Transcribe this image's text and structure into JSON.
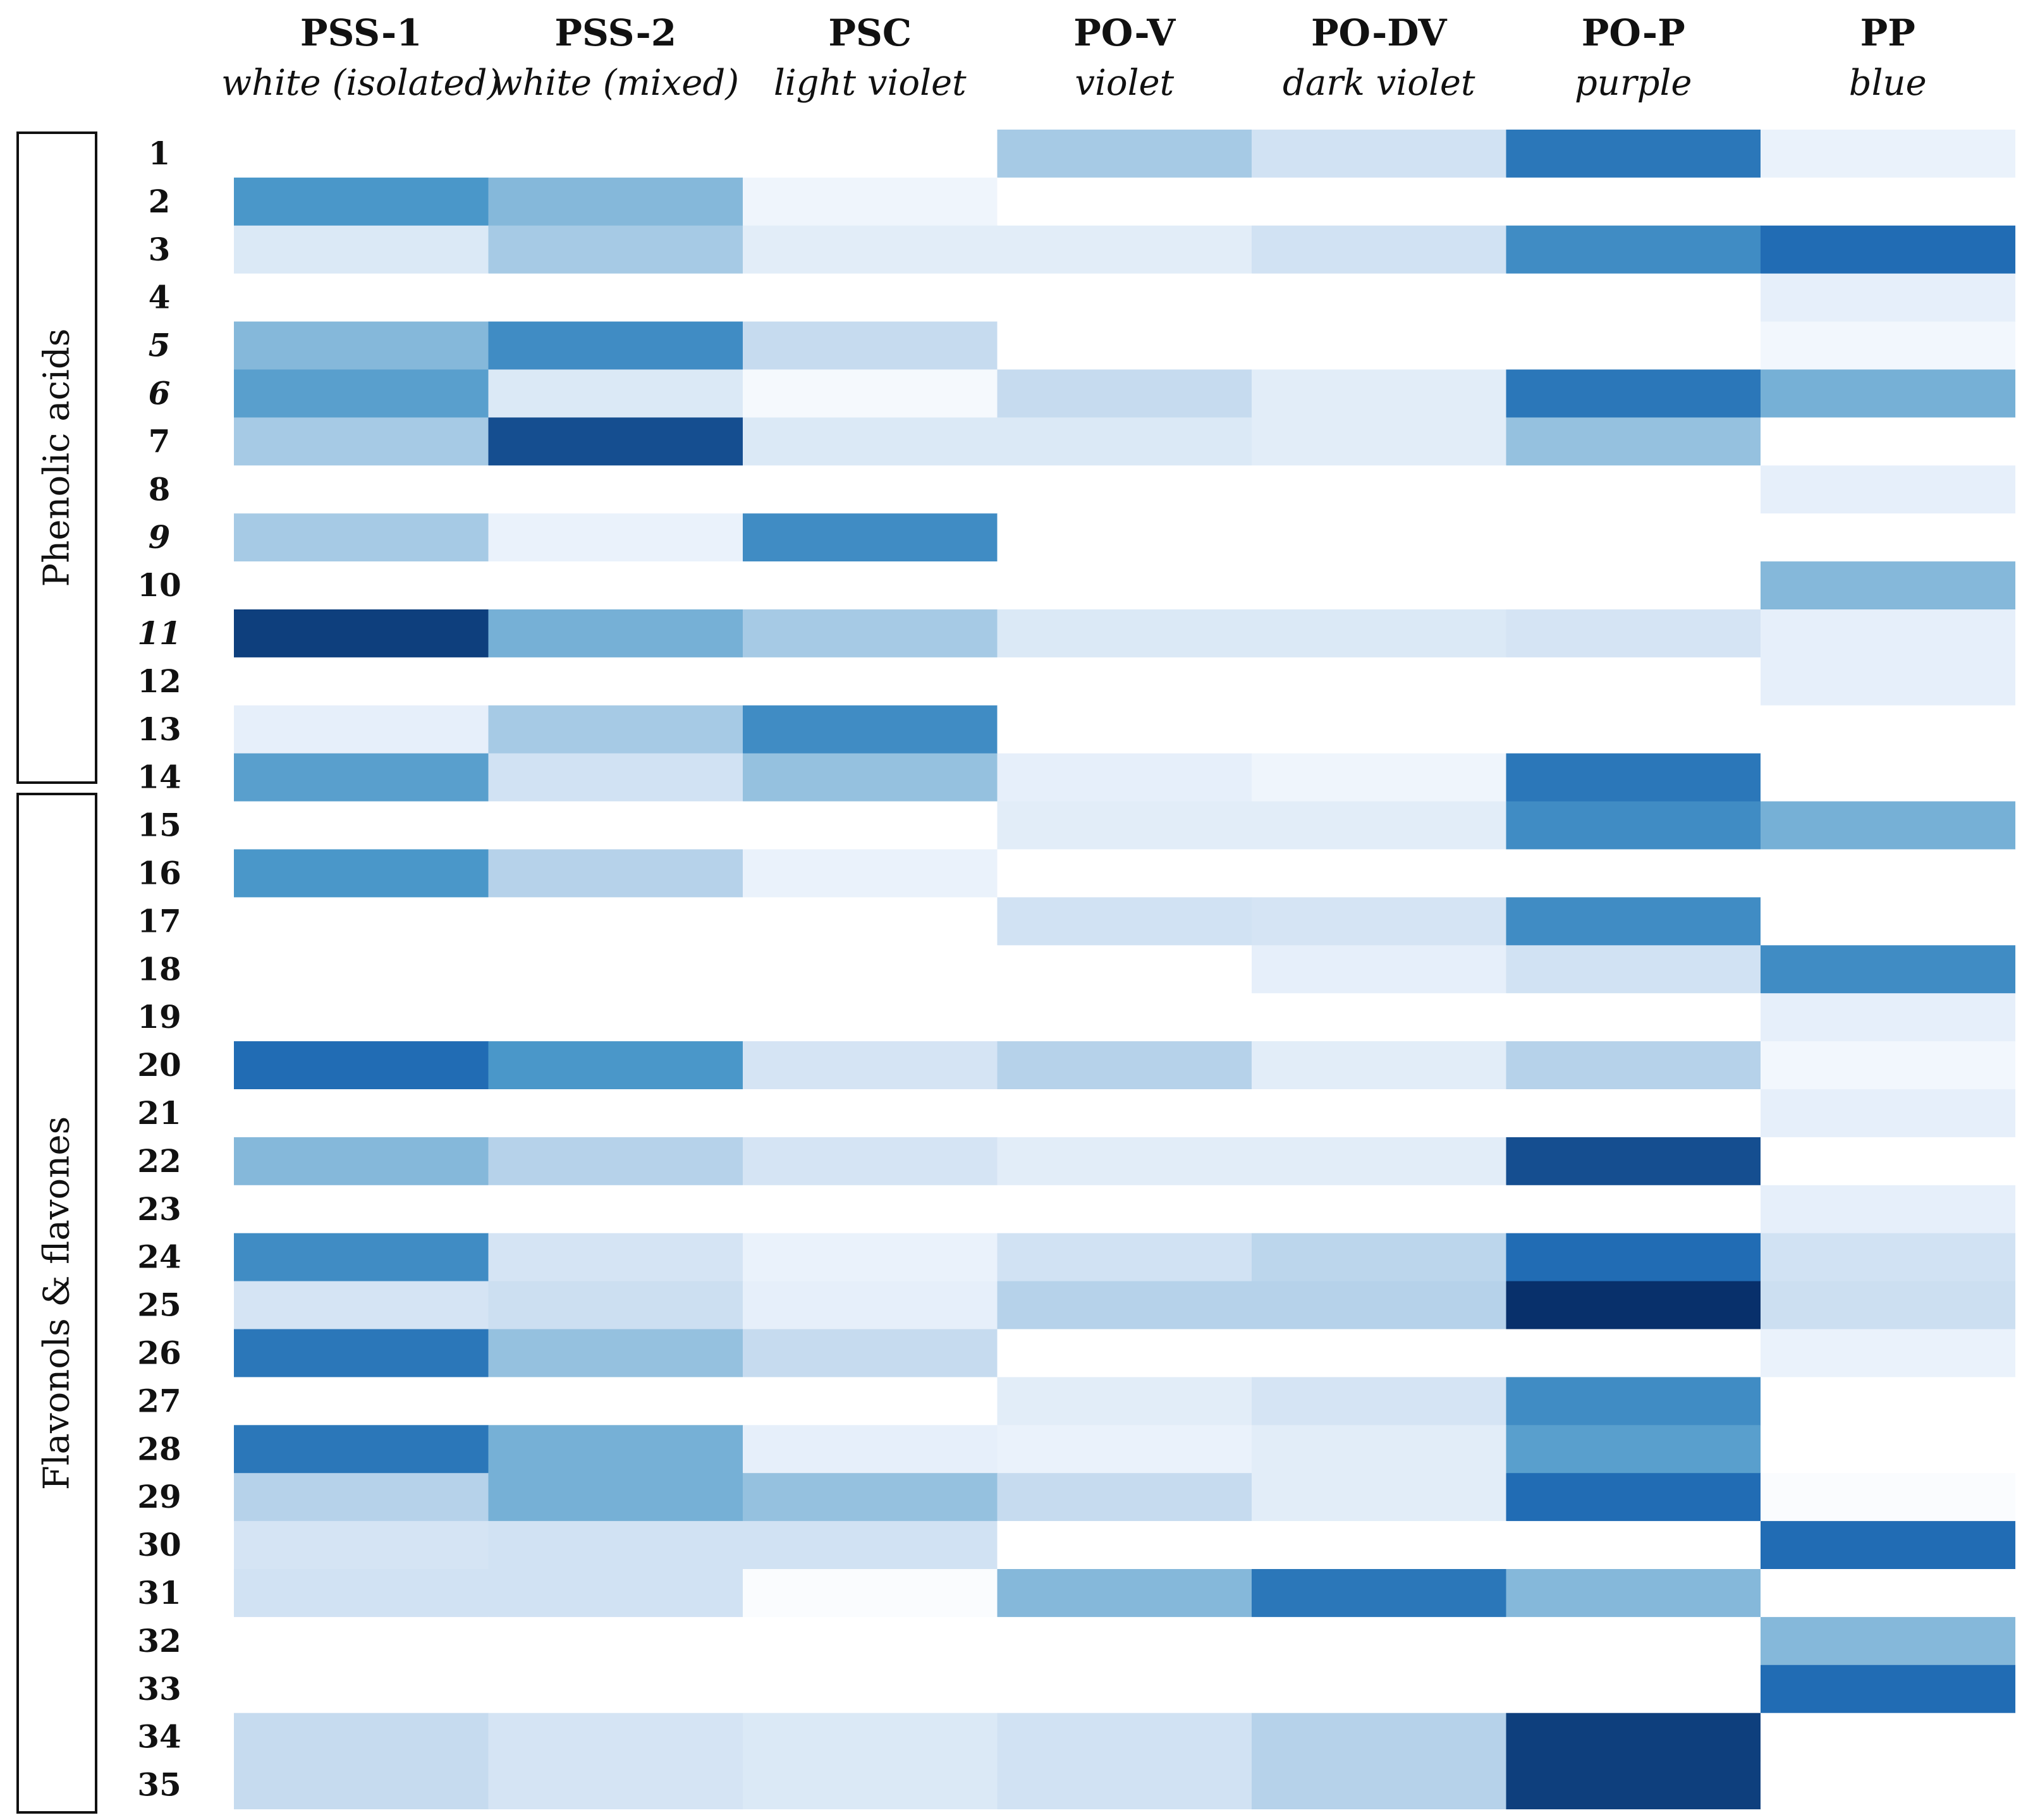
{
  "chart_data": {
    "type": "heatmap",
    "columns": [
      {
        "code": "PSS-1",
        "description": "white (isolated)"
      },
      {
        "code": "PSS-2",
        "description": "white (mixed)"
      },
      {
        "code": "PSC",
        "description": "light violet"
      },
      {
        "code": "PO-V",
        "description": "violet"
      },
      {
        "code": "PO-DV",
        "description": "dark violet"
      },
      {
        "code": "PO-P",
        "description": "purple"
      },
      {
        "code": "PP",
        "description": "blue"
      }
    ],
    "rows": [
      "1",
      "2",
      "3",
      "4",
      "5",
      "6",
      "7",
      "8",
      "9",
      "10",
      "11",
      "12",
      "13",
      "14",
      "15",
      "16",
      "17",
      "18",
      "19",
      "20",
      "21",
      "22",
      "23",
      "24",
      "25",
      "26",
      "27",
      "28",
      "29",
      "30",
      "31",
      "32",
      "33",
      "34",
      "35"
    ],
    "italic_rows": [
      "5",
      "6",
      "9",
      "11"
    ],
    "groups": [
      {
        "label": "Phenolic acids",
        "rows": [
          "1",
          "14"
        ]
      },
      {
        "label": "Flavonols & flavones",
        "rows": [
          "15",
          "35"
        ]
      }
    ],
    "values": [
      [
        0,
        0,
        0,
        0.35,
        0.2,
        0.8,
        0.08
      ],
      [
        0.65,
        0.45,
        0.06,
        0,
        0,
        0,
        0
      ],
      [
        0.15,
        0.35,
        0.12,
        0.12,
        0.2,
        0.7,
        0.85
      ],
      [
        0,
        0,
        0,
        0,
        0,
        0,
        0.1
      ],
      [
        0.45,
        0.7,
        0.25,
        0,
        0,
        0,
        0.05
      ],
      [
        0.6,
        0.15,
        0.04,
        0.25,
        0.12,
        0.8,
        0.5
      ],
      [
        0.35,
        0.95,
        0.15,
        0.15,
        0.12,
        0.4,
        0
      ],
      [
        0,
        0,
        0,
        0,
        0,
        0,
        0.1
      ],
      [
        0.35,
        0.08,
        0.7,
        0,
        0,
        0,
        0
      ],
      [
        0,
        0,
        0,
        0,
        0,
        0,
        0.45
      ],
      [
        1.0,
        0.5,
        0.35,
        0.15,
        0.15,
        0.18,
        0.1
      ],
      [
        0,
        0,
        0,
        0,
        0,
        0,
        0.1
      ],
      [
        0.1,
        0.35,
        0.7,
        0,
        0,
        0,
        0
      ],
      [
        0.6,
        0.2,
        0.4,
        0.1,
        0.06,
        0.8,
        0
      ],
      [
        0,
        0,
        0,
        0.12,
        0.12,
        0.7,
        0.5
      ],
      [
        0.65,
        0.3,
        0.08,
        0,
        0,
        0,
        0
      ],
      [
        0,
        0,
        0,
        0.2,
        0.18,
        0.7,
        0
      ],
      [
        0,
        0,
        0,
        0,
        0.1,
        0.2,
        0.7
      ],
      [
        0,
        0,
        0,
        0,
        0,
        0,
        0.1
      ],
      [
        0.85,
        0.65,
        0.18,
        0.3,
        0.12,
        0.3,
        0.05
      ],
      [
        0,
        0,
        0,
        0,
        0,
        0,
        0.1
      ],
      [
        0.45,
        0.3,
        0.18,
        0.12,
        0.12,
        0.95,
        0
      ],
      [
        0,
        0,
        0,
        0,
        0,
        0,
        0.1
      ],
      [
        0.7,
        0.18,
        0.08,
        0.2,
        0.28,
        0.85,
        0.2
      ],
      [
        0.18,
        0.22,
        0.1,
        0.3,
        0.3,
        1.05,
        0.22
      ],
      [
        0.8,
        0.4,
        0.25,
        0,
        0,
        0,
        0.08
      ],
      [
        0,
        0,
        0,
        0.12,
        0.18,
        0.7,
        0
      ],
      [
        0.8,
        0.5,
        0.1,
        0.08,
        0.12,
        0.6,
        0
      ],
      [
        0.3,
        0.5,
        0.4,
        0.25,
        0.12,
        0.85,
        0.02
      ],
      [
        0.18,
        0.2,
        0.2,
        0,
        0,
        0,
        0.85
      ],
      [
        0.2,
        0.2,
        0.02,
        0.45,
        0.8,
        0.45,
        0
      ],
      [
        0,
        0,
        0,
        0,
        0,
        0,
        0.45
      ],
      [
        0,
        0,
        0,
        0,
        0,
        0,
        0.85
      ],
      [
        0.25,
        0.18,
        0.15,
        0.2,
        0.3,
        1.0,
        0
      ],
      [
        0.25,
        0.18,
        0.15,
        0.2,
        0.3,
        1.0,
        0
      ]
    ],
    "color_scale": {
      "low": "#ffffff",
      "high": "#08306b",
      "mid": "#4292c6"
    },
    "grid": false,
    "legend": "none",
    "title": "",
    "xlabel": "",
    "ylabel": ""
  }
}
